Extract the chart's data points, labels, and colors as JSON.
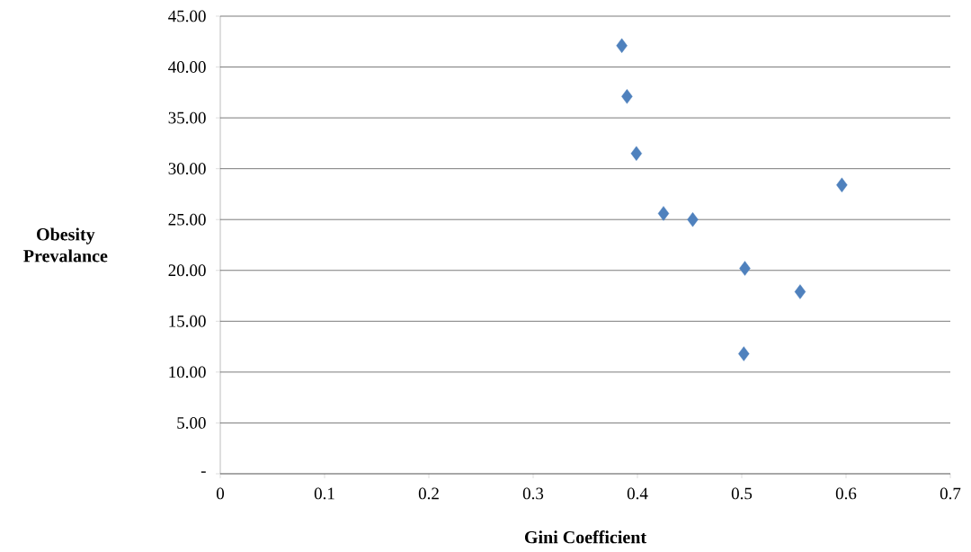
{
  "chart_data": {
    "type": "scatter",
    "xlabel": "Gini Coefficient",
    "ylabel": "Obesity Prevalance",
    "x": [
      0.385,
      0.39,
      0.399,
      0.596,
      0.425,
      0.453,
      0.503,
      0.556,
      0.502
    ],
    "values": [
      42.1,
      37.1,
      31.5,
      28.4,
      25.6,
      25.0,
      20.2,
      17.9,
      11.8
    ],
    "color": "#4f81bd",
    "marker": "diamond",
    "grid": "y",
    "xlim": [
      0,
      0.7
    ],
    "ylim": [
      0,
      45
    ],
    "xticks": [
      0,
      0.1,
      0.2,
      0.3,
      0.4,
      0.5,
      0.6,
      0.7
    ],
    "yticks": [
      {
        "value": 0,
        "label": "-"
      },
      {
        "value": 5,
        "label": "5.00"
      },
      {
        "value": 10,
        "label": "10.00"
      },
      {
        "value": 15,
        "label": "15.00"
      },
      {
        "value": 20,
        "label": "20.00"
      },
      {
        "value": 25,
        "label": "25.00"
      },
      {
        "value": 30,
        "label": "30.00"
      },
      {
        "value": 35,
        "label": "35.00"
      },
      {
        "value": 40,
        "label": "40.00"
      },
      {
        "value": 45,
        "label": "45.00"
      }
    ]
  }
}
